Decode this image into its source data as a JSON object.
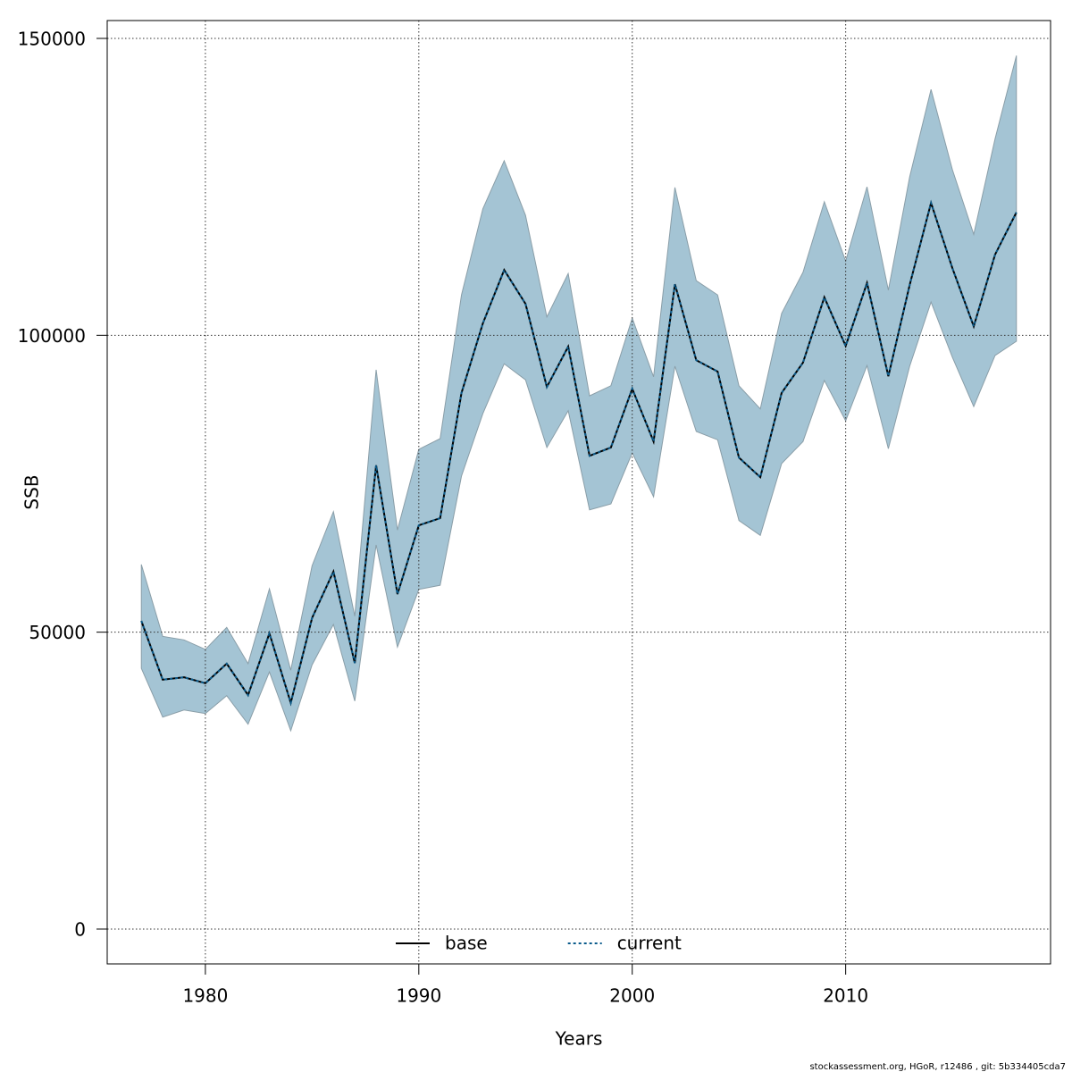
{
  "chart_data": {
    "type": "line",
    "xlabel": "Years",
    "ylabel": "SSB",
    "footnote": "stockassessment.org, HGoR, r12486 , git: 5b334405cda7",
    "x": [
      1977,
      1978,
      1979,
      1980,
      1981,
      1982,
      1983,
      1984,
      1985,
      1986,
      1987,
      1988,
      1989,
      1990,
      1991,
      1992,
      1993,
      1994,
      1995,
      1996,
      1997,
      1998,
      1999,
      2000,
      2001,
      2002,
      2003,
      2004,
      2005,
      2006,
      2007,
      2008,
      2009,
      2010,
      2011,
      2012,
      2013,
      2014,
      2015,
      2016,
      2017,
      2018
    ],
    "series": [
      {
        "name": "base",
        "color": "#000000",
        "dash": "solid",
        "values": [
          51900,
          42000,
          42400,
          41400,
          44700,
          39400,
          49800,
          38100,
          52400,
          60200,
          44800,
          78100,
          56400,
          68000,
          69200,
          90300,
          102000,
          111000,
          105300,
          91300,
          98100,
          79700,
          81100,
          91000,
          82100,
          108600,
          95800,
          93900,
          79400,
          76100,
          90300,
          95400,
          106400,
          98200,
          108800,
          93100,
          108500,
          122300,
          111300,
          101500,
          113600,
          120700
        ]
      },
      {
        "name": "current",
        "color": "#0b5c8c",
        "dash": "dotted",
        "values": [
          51900,
          42000,
          42400,
          41400,
          44700,
          39400,
          49800,
          38100,
          52400,
          60200,
          44800,
          78100,
          56400,
          68000,
          69200,
          90300,
          102000,
          111000,
          105300,
          91300,
          98100,
          79700,
          81100,
          91000,
          82100,
          108600,
          95800,
          93900,
          79400,
          76100,
          90300,
          95400,
          106400,
          98200,
          108800,
          93100,
          108500,
          122300,
          111300,
          101500,
          113600,
          120700
        ]
      }
    ],
    "band": {
      "color": "#a4c4d4",
      "upper": [
        61400,
        49300,
        48700,
        47100,
        50800,
        44700,
        57300,
        43600,
        61200,
        70300,
        52700,
        94200,
        67200,
        80800,
        82600,
        106800,
        121300,
        129400,
        120200,
        103100,
        110400,
        89800,
        91500,
        102900,
        93000,
        124900,
        109200,
        106800,
        91500,
        87600,
        103700,
        110600,
        122500,
        112500,
        125000,
        107600,
        126700,
        141400,
        127900,
        117000,
        133100,
        147100
      ],
      "lower": [
        43900,
        35700,
        36900,
        36300,
        39300,
        34500,
        43300,
        33400,
        44500,
        51300,
        38400,
        64700,
        47500,
        57200,
        57900,
        76300,
        86800,
        95200,
        92500,
        81100,
        87300,
        70600,
        71600,
        80200,
        72800,
        94800,
        83800,
        82400,
        68800,
        66300,
        78400,
        82100,
        92400,
        85600,
        94900,
        80900,
        94800,
        105600,
        96300,
        88000,
        96600,
        99000
      ]
    },
    "xlim": [
      1975.4,
      2019.6
    ],
    "ylim": [
      -5870,
      153010
    ],
    "xticks": [
      1980,
      1990,
      2000,
      2010
    ],
    "yticks": [
      0,
      50000,
      100000,
      150000
    ],
    "grid": true,
    "legend": "bottom"
  }
}
